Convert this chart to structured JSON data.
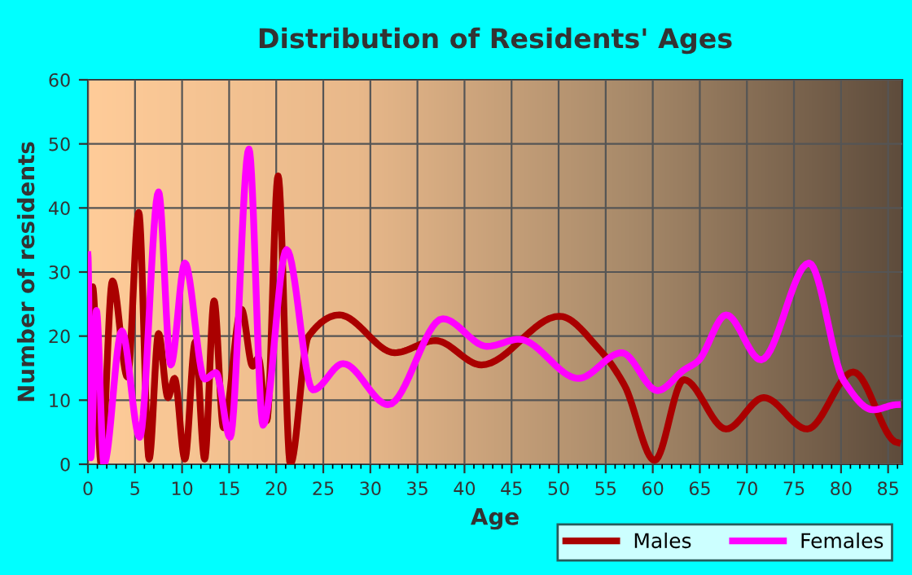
{
  "chart_data": {
    "type": "line",
    "title": "Distribution of Residents' Ages",
    "xlabel": "Age",
    "ylabel": "Number of residents",
    "xlim": [
      0,
      86.5
    ],
    "xticks": [
      0,
      5,
      10,
      15,
      20,
      25,
      30,
      35,
      40,
      45,
      50,
      55,
      60,
      65,
      70,
      75,
      80,
      85
    ],
    "ylim": [
      0,
      60
    ],
    "yticks": [
      0,
      10,
      20,
      30,
      40,
      50,
      60
    ],
    "grid": true,
    "legend": "bottom",
    "marker": "none",
    "line_style": "solid",
    "series": [
      {
        "name": "Males",
        "color": "#aa0000",
        "x": [
          0,
          0.5,
          1.4,
          2.6,
          4.2,
          5.4,
          6.5,
          7.5,
          8.5,
          9.2,
          10.3,
          11.4,
          12.4,
          13.4,
          14.4,
          16.3,
          17.5,
          18.1,
          19.0,
          20.2,
          21.5,
          23.4,
          26.7,
          32.6,
          36.9,
          41.8,
          50.1,
          54.4,
          57.0,
          60.2,
          63.3,
          67.8,
          71.8,
          76.4,
          81.3,
          86.0
        ],
        "values": [
          25,
          27.7,
          0,
          28.6,
          13.6,
          39.3,
          0.8,
          20.4,
          10.4,
          13.4,
          0.8,
          19.1,
          0.8,
          25.5,
          5.7,
          24.2,
          15.3,
          16.6,
          6.8,
          45,
          0,
          19.9,
          23.3,
          17.4,
          19.3,
          15.5,
          23.1,
          17.8,
          12.3,
          0.6,
          13.2,
          5.5,
          10.4,
          5.5,
          14.4,
          3.4
        ]
      },
      {
        "name": "Females",
        "color": "#ff00ff",
        "x": [
          0,
          0.3,
          0.9,
          1.7,
          3.6,
          5.5,
          7.5,
          8.8,
          10.3,
          12.4,
          13.6,
          15.1,
          17.1,
          18.6,
          21.1,
          23.9,
          27.1,
          31.9,
          37.7,
          42.4,
          45.8,
          52.1,
          56.7,
          60.5,
          63.3,
          64.8,
          67.8,
          71.5,
          76.6,
          80.3,
          83.4,
          86.0
        ],
        "values": [
          32.7,
          1,
          24,
          0,
          20.8,
          4.2,
          42.5,
          15.5,
          31.4,
          13.3,
          14.3,
          4.2,
          49.2,
          6.1,
          33.5,
          11.6,
          15.7,
          9.3,
          22.7,
          18.4,
          19.5,
          13.4,
          17.4,
          11.5,
          14.7,
          16.1,
          23.3,
          16.3,
          31.4,
          13,
          8.5,
          9.3
        ]
      }
    ]
  }
}
